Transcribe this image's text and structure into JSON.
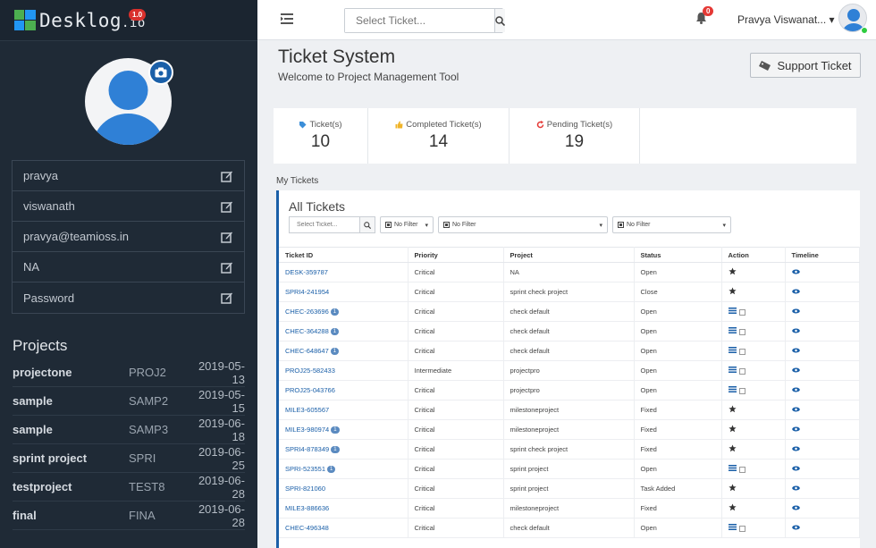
{
  "brand": {
    "name": "Desklog",
    "suffix": ".io",
    "version": "1.0"
  },
  "profile": {
    "fields": [
      {
        "value": "pravya"
      },
      {
        "value": "viswanath"
      },
      {
        "value": "pravya@teamioss.in"
      },
      {
        "value": "NA"
      },
      {
        "value": "Password"
      }
    ]
  },
  "projects": {
    "title": "Projects",
    "items": [
      {
        "name": "projectone",
        "code": "PROJ2",
        "date": "2019-05-13"
      },
      {
        "name": "sample",
        "code": "SAMP2",
        "date": "2019-05-15"
      },
      {
        "name": "sample",
        "code": "SAMP3",
        "date": "2019-06-18"
      },
      {
        "name": "sprint project",
        "code": "SPRI",
        "date": "2019-06-25"
      },
      {
        "name": "testproject",
        "code": "TEST8",
        "date": "2019-06-28"
      },
      {
        "name": "final",
        "code": "FINA",
        "date": "2019-06-28"
      }
    ]
  },
  "topbar": {
    "search_placeholder": "Select Ticket...",
    "notification_count": "0",
    "user_name": "Pravya Viswanat..."
  },
  "header": {
    "title": "Ticket System",
    "subtitle": "Welcome to Project Management Tool",
    "support_label": "Support Ticket"
  },
  "stats": [
    {
      "label": "Ticket(s)",
      "value": "10",
      "color": "#3b8ed8"
    },
    {
      "label": "Completed Ticket(s)",
      "value": "14",
      "color": "#f0b429"
    },
    {
      "label": "Pending Ticket(s)",
      "value": "19",
      "color": "#e53935"
    }
  ],
  "my_tickets_label": "My Tickets",
  "tickets": {
    "title": "All Tickets",
    "search_placeholder": "Select Ticket...",
    "filters": [
      "No Filter",
      "No Filter",
      "No Filter"
    ],
    "columns": [
      "Ticket ID",
      "Priority",
      "Project",
      "Status",
      "Action",
      "Timeline"
    ],
    "rows": [
      {
        "id": "DESK-359787",
        "badge": "",
        "priority": "Critical",
        "project": "NA",
        "status": "Open",
        "action": "star-icon"
      },
      {
        "id": "SPRI4-241954",
        "badge": "",
        "priority": "Critical",
        "project": "sprint check project",
        "status": "Close",
        "action": "star-icon"
      },
      {
        "id": "CHEC-263696",
        "badge": "1",
        "priority": "Critical",
        "project": "check default",
        "status": "Open",
        "action": "list-check"
      },
      {
        "id": "CHEC-364288",
        "badge": "1",
        "priority": "Critical",
        "project": "check default",
        "status": "Open",
        "action": "list-check"
      },
      {
        "id": "CHEC-648647",
        "badge": "1",
        "priority": "Critical",
        "project": "check default",
        "status": "Open",
        "action": "list-check"
      },
      {
        "id": "PROJ25-582433",
        "badge": "",
        "priority": "Intermediate",
        "project": "projectpro",
        "status": "Open",
        "action": "list-check"
      },
      {
        "id": "PROJ25-043766",
        "badge": "",
        "priority": "Critical",
        "project": "projectpro",
        "status": "Open",
        "action": "list-check"
      },
      {
        "id": "MILE3-605567",
        "badge": "",
        "priority": "Critical",
        "project": "milestoneproject",
        "status": "Fixed",
        "action": "star-icon"
      },
      {
        "id": "MILE3-980974",
        "badge": "1",
        "priority": "Critical",
        "project": "milestoneproject",
        "status": "Fixed",
        "action": "star-icon"
      },
      {
        "id": "SPRI4-878349",
        "badge": "1",
        "priority": "Critical",
        "project": "sprint check project",
        "status": "Fixed",
        "action": "star-icon"
      },
      {
        "id": "SPRI-523551",
        "badge": "1",
        "priority": "Critical",
        "project": "sprint project",
        "status": "Open",
        "action": "list-check"
      },
      {
        "id": "SPRI-821060",
        "badge": "",
        "priority": "Critical",
        "project": "sprint project",
        "status": "Task Added",
        "action": "star-icon"
      },
      {
        "id": "MILE3-886636",
        "badge": "",
        "priority": "Critical",
        "project": "milestoneproject",
        "status": "Fixed",
        "action": "star-icon"
      },
      {
        "id": "CHEC-496348",
        "badge": "",
        "priority": "Critical",
        "project": "check default",
        "status": "Open",
        "action": "list-check"
      }
    ]
  }
}
